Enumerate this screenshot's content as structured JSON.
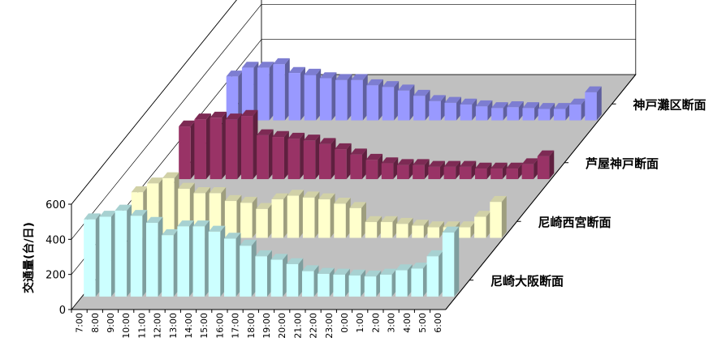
{
  "chart_data": {
    "type": "bar",
    "style": "3d-column",
    "ylabel": "交通量(台/日)",
    "ylim": [
      0,
      600
    ],
    "yticks": [
      "0",
      "200",
      "400",
      "600"
    ],
    "grid": true,
    "categories": [
      "7:00",
      "8:00",
      "9:00",
      "10:00",
      "11:00",
      "12:00",
      "13:00",
      "14:00",
      "15:00",
      "16:00",
      "17:00",
      "18:00",
      "19:00",
      "20:00",
      "21:00",
      "22:00",
      "23:00",
      "0:00",
      "1:00",
      "2:00",
      "3:00",
      "4:00",
      "5:00",
      "6:00"
    ],
    "series": [
      {
        "name": "尼崎大阪断面",
        "color": "#ccffff",
        "values": [
          440,
          455,
          490,
          460,
          420,
          350,
          400,
          400,
          370,
          330,
          290,
          230,
          210,
          185,
          145,
          130,
          125,
          120,
          115,
          125,
          150,
          160,
          230,
          365
        ]
      },
      {
        "name": "尼崎西宮断面",
        "color": "#ffffcc",
        "values": [
          260,
          310,
          340,
          280,
          255,
          255,
          210,
          200,
          165,
          220,
          240,
          230,
          220,
          195,
          170,
          90,
          90,
          80,
          70,
          60,
          60,
          60,
          120,
          205
        ]
      },
      {
        "name": "芦屋神戸断面",
        "color": "#993366",
        "values": [
          300,
          340,
          350,
          340,
          360,
          250,
          240,
          230,
          220,
          200,
          170,
          140,
          110,
          90,
          80,
          80,
          70,
          70,
          70,
          60,
          60,
          60,
          85,
          130
        ]
      },
      {
        "name": "神戸灘区断面",
        "color": "#9999ff",
        "values": [
          250,
          300,
          300,
          320,
          270,
          260,
          240,
          230,
          230,
          200,
          190,
          170,
          140,
          110,
          100,
          90,
          80,
          70,
          75,
          70,
          65,
          65,
          90,
          160
        ]
      }
    ]
  }
}
